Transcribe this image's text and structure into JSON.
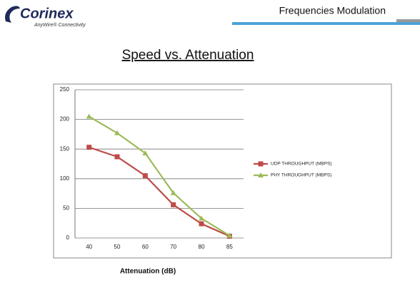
{
  "logo": {
    "name": "Corinex",
    "tagline": "AnyWire® Connectivity"
  },
  "slide_title": "Frequencies Modulation",
  "chart_data": {
    "type": "line",
    "title": "Speed vs. Attenuation",
    "x_label": "Attenuation (dB)",
    "categories": [
      "40",
      "50",
      "60",
      "70",
      "80",
      "85"
    ],
    "series": [
      {
        "name": "UDP THROUGHPUT (MBPS)",
        "color": "#be4b48",
        "marker": "square",
        "values": [
          153,
          137,
          105,
          56,
          24,
          3
        ]
      },
      {
        "name": "PHY THROUGHPUT (MBPS)",
        "color": "#9bbb59",
        "marker": "triangle",
        "values": [
          205,
          177,
          143,
          76,
          33,
          4
        ]
      }
    ],
    "ylim": [
      0,
      250
    ],
    "yticks": [
      0,
      50,
      100,
      150,
      200,
      250
    ],
    "grid": true,
    "legend": "right"
  }
}
